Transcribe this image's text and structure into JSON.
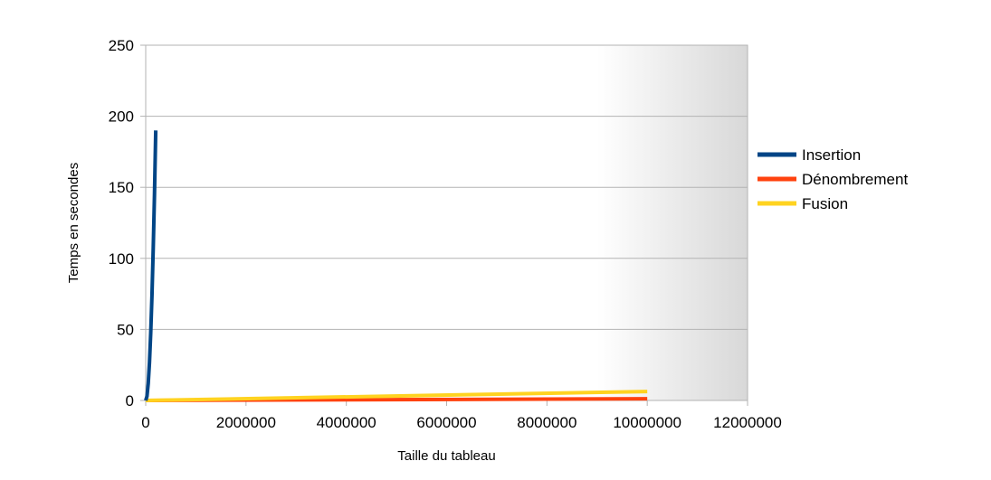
{
  "chart_data": {
    "type": "line",
    "title": "",
    "xlabel": "Taille du tableau",
    "ylabel": "Temps en secondes",
    "xlim": [
      0,
      12000000
    ],
    "ylim": [
      0,
      250
    ],
    "x_ticks": [
      0,
      2000000,
      4000000,
      6000000,
      8000000,
      10000000,
      12000000
    ],
    "x_tick_labels": [
      "0",
      "2000000",
      "4000000",
      "6000000",
      "8000000",
      "10000000",
      "12000000"
    ],
    "y_ticks": [
      0,
      50,
      100,
      150,
      200,
      250
    ],
    "y_tick_labels": [
      "0",
      "50",
      "100",
      "150",
      "200",
      "250"
    ],
    "grid": true,
    "legend_position": "right",
    "series": [
      {
        "name": "Insertion",
        "color": "#004586",
        "x": [
          0,
          25000,
          50000,
          75000,
          100000,
          125000,
          150000,
          175000,
          200000
        ],
        "y": [
          0,
          2.9,
          11.8,
          26.6,
          47.5,
          74,
          107,
          145,
          190
        ]
      },
      {
        "name": "Dénombrement",
        "color": "#ff420e",
        "x": [
          0,
          10000000
        ],
        "y": [
          0,
          1.2
        ]
      },
      {
        "name": "Fusion",
        "color": "#ffd320",
        "x": [
          0,
          10000000
        ],
        "y": [
          0,
          6.3
        ]
      }
    ]
  }
}
